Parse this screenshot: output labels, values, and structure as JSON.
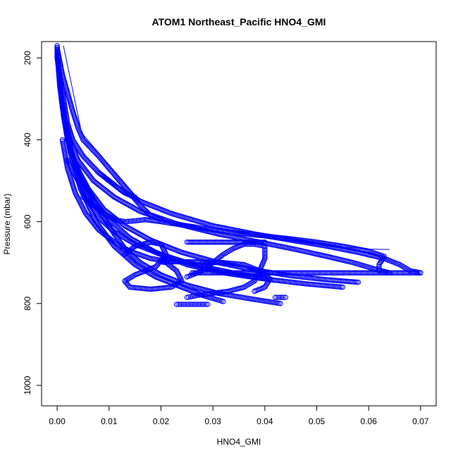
{
  "chart_data": {
    "type": "scatter",
    "title": "ATOM1 Northeast_Pacific HNO4_GMI",
    "xlabel": "HNO4_GMI",
    "ylabel": "Pressure (mbar)",
    "xlim": [
      -0.003,
      0.073
    ],
    "ylim": [
      1050,
      160
    ],
    "y_reversed": true,
    "x_ticks": [
      "0.00",
      "0.01",
      "0.02",
      "0.03",
      "0.04",
      "0.05",
      "0.06",
      "0.07"
    ],
    "x_tick_values": [
      0.0,
      0.01,
      0.02,
      0.03,
      0.04,
      0.05,
      0.06,
      0.07
    ],
    "y_ticks": [
      "200",
      "400",
      "600",
      "800",
      "1000"
    ],
    "y_tick_values": [
      200,
      400,
      600,
      800,
      1000
    ],
    "grid": false,
    "legend": "none",
    "color": "#0000ff",
    "marker": "open-circle",
    "series": [
      {
        "values": [
          [
            0.0,
            170
          ],
          [
            0.0,
            200
          ],
          [
            0.0005,
            240
          ],
          [
            0.001,
            280
          ],
          [
            0.0015,
            320
          ],
          [
            0.002,
            360
          ],
          [
            0.003,
            400
          ],
          [
            0.005,
            440
          ],
          [
            0.008,
            480
          ],
          [
            0.012,
            520
          ],
          [
            0.016,
            550
          ],
          [
            0.022,
            580
          ],
          [
            0.03,
            610
          ],
          [
            0.038,
            630
          ],
          [
            0.045,
            645
          ],
          [
            0.052,
            660
          ],
          [
            0.058,
            675
          ],
          [
            0.063,
            690
          ],
          [
            0.066,
            705
          ],
          [
            0.068,
            720
          ],
          [
            0.07,
            725
          ]
        ]
      },
      {
        "values": [
          [
            0.0,
            175
          ],
          [
            0.0003,
            230
          ],
          [
            0.0008,
            290
          ],
          [
            0.0015,
            350
          ],
          [
            0.0025,
            400
          ],
          [
            0.004,
            450
          ],
          [
            0.007,
            500
          ],
          [
            0.011,
            540
          ],
          [
            0.016,
            575
          ],
          [
            0.023,
            605
          ],
          [
            0.031,
            630
          ],
          [
            0.039,
            650
          ],
          [
            0.046,
            668
          ],
          [
            0.052,
            685
          ],
          [
            0.057,
            700
          ],
          [
            0.061,
            715
          ],
          [
            0.064,
            725
          ]
        ]
      },
      {
        "values": [
          [
            0.0,
            180
          ],
          [
            0.0005,
            260
          ],
          [
            0.0012,
            340
          ],
          [
            0.002,
            400
          ],
          [
            0.0035,
            460
          ],
          [
            0.006,
            520
          ],
          [
            0.009,
            570
          ],
          [
            0.013,
            610
          ],
          [
            0.018,
            645
          ],
          [
            0.024,
            675
          ],
          [
            0.031,
            700
          ],
          [
            0.038,
            718
          ],
          [
            0.045,
            732
          ],
          [
            0.052,
            742
          ],
          [
            0.058,
            748
          ]
        ]
      },
      {
        "values": [
          [
            0.0,
            185
          ],
          [
            0.0005,
            270
          ],
          [
            0.0015,
            360
          ],
          [
            0.003,
            440
          ],
          [
            0.005,
            500
          ],
          [
            0.007,
            545
          ],
          [
            0.009,
            590
          ],
          [
            0.011,
            630
          ],
          [
            0.013,
            665
          ],
          [
            0.016,
            700
          ],
          [
            0.02,
            730
          ],
          [
            0.025,
            755
          ],
          [
            0.031,
            775
          ],
          [
            0.038,
            790
          ],
          [
            0.043,
            800
          ]
        ]
      },
      {
        "values": [
          [
            0.0,
            190
          ],
          [
            0.0008,
            300
          ],
          [
            0.002,
            400
          ],
          [
            0.004,
            480
          ],
          [
            0.0065,
            540
          ],
          [
            0.01,
            595
          ],
          [
            0.014,
            640
          ],
          [
            0.019,
            675
          ],
          [
            0.025,
            705
          ],
          [
            0.032,
            725
          ],
          [
            0.04,
            740
          ],
          [
            0.048,
            752
          ],
          [
            0.055,
            760
          ]
        ]
      },
      {
        "values": [
          [
            0.0,
            195
          ],
          [
            0.001,
            320
          ],
          [
            0.0025,
            430
          ],
          [
            0.0045,
            520
          ],
          [
            0.0075,
            600
          ],
          [
            0.011,
            660
          ],
          [
            0.015,
            705
          ],
          [
            0.019,
            735
          ],
          [
            0.024,
            760
          ],
          [
            0.028,
            780
          ],
          [
            0.032,
            795
          ]
        ]
      },
      {
        "values": [
          [
            0.013,
            680
          ],
          [
            0.015,
            660
          ],
          [
            0.018,
            650
          ],
          [
            0.02,
            655
          ],
          [
            0.021,
            680
          ],
          [
            0.019,
            710
          ],
          [
            0.015,
            730
          ],
          [
            0.013,
            745
          ],
          [
            0.014,
            760
          ],
          [
            0.018,
            765
          ],
          [
            0.022,
            760
          ],
          [
            0.024,
            745
          ],
          [
            0.023,
            720
          ],
          [
            0.021,
            700
          ],
          [
            0.02,
            698
          ],
          [
            0.024,
            698
          ],
          [
            0.028,
            698
          ],
          [
            0.03,
            700
          ]
        ]
      },
      {
        "values": [
          [
            0.025,
            735
          ],
          [
            0.028,
            720
          ],
          [
            0.03,
            700
          ],
          [
            0.032,
            680
          ],
          [
            0.034,
            665
          ],
          [
            0.036,
            655
          ],
          [
            0.038,
            655
          ],
          [
            0.04,
            660
          ],
          [
            0.04,
            690
          ],
          [
            0.039,
            720
          ],
          [
            0.038,
            745
          ],
          [
            0.036,
            760
          ],
          [
            0.033,
            770
          ],
          [
            0.03,
            775
          ],
          [
            0.027,
            780
          ],
          [
            0.025,
            785
          ]
        ]
      },
      {
        "values": [
          [
            0.026,
            725
          ],
          [
            0.03,
            725
          ],
          [
            0.034,
            725
          ],
          [
            0.038,
            725
          ],
          [
            0.042,
            725
          ],
          [
            0.046,
            725
          ],
          [
            0.05,
            725
          ],
          [
            0.054,
            725
          ],
          [
            0.058,
            725
          ],
          [
            0.062,
            725
          ],
          [
            0.066,
            725
          ],
          [
            0.07,
            725
          ]
        ]
      },
      {
        "values": [
          [
            0.025,
            650
          ],
          [
            0.028,
            650
          ],
          [
            0.031,
            650
          ],
          [
            0.034,
            650
          ],
          [
            0.037,
            650
          ],
          [
            0.04,
            650
          ]
        ]
      },
      {
        "values": [
          [
            0.028,
            700
          ],
          [
            0.032,
            700
          ],
          [
            0.036,
            705
          ],
          [
            0.039,
            720
          ],
          [
            0.041,
            740
          ],
          [
            0.04,
            760
          ],
          [
            0.038,
            770
          ]
        ]
      },
      {
        "values": [
          [
            0.023,
            802
          ],
          [
            0.024,
            802
          ],
          [
            0.025,
            802
          ],
          [
            0.026,
            802
          ],
          [
            0.027,
            802
          ],
          [
            0.028,
            802
          ],
          [
            0.029,
            802
          ]
        ]
      },
      {
        "values": [
          [
            0.042,
            785
          ],
          [
            0.043,
            785
          ],
          [
            0.044,
            785
          ]
        ]
      },
      {
        "values": [
          [
            0.0,
            175
          ],
          [
            0.001,
            240
          ],
          [
            0.003,
            330
          ],
          [
            0.004,
            370
          ],
          [
            0.0045,
            385
          ],
          [
            0.005,
            400
          ],
          [
            0.008,
            440
          ],
          [
            0.01,
            470
          ],
          [
            0.012,
            500
          ],
          [
            0.014,
            530
          ],
          [
            0.016,
            560
          ],
          [
            0.018,
            585
          ],
          [
            0.02,
            595
          ]
        ]
      },
      {
        "values": [
          [
            0.005,
            540
          ],
          [
            0.007,
            560
          ],
          [
            0.009,
            580
          ],
          [
            0.011,
            595
          ],
          [
            0.013,
            600
          ],
          [
            0.015,
            598
          ],
          [
            0.017,
            595
          ],
          [
            0.02,
            600
          ],
          [
            0.025,
            610
          ],
          [
            0.03,
            620
          ],
          [
            0.035,
            628
          ],
          [
            0.04,
            635
          ],
          [
            0.045,
            642
          ],
          [
            0.05,
            650
          ],
          [
            0.055,
            660
          ],
          [
            0.06,
            672
          ],
          [
            0.063,
            685
          ],
          [
            0.062,
            705
          ],
          [
            0.062,
            720
          ]
        ]
      },
      {
        "values": [
          [
            0.008,
            480
          ],
          [
            0.01,
            500
          ],
          [
            0.012,
            520
          ],
          [
            0.013,
            530
          ],
          [
            0.014,
            535
          ],
          [
            0.015,
            540
          ]
        ]
      },
      {
        "values": [
          [
            0.002,
            450
          ],
          [
            0.004,
            500
          ],
          [
            0.006,
            550
          ],
          [
            0.008,
            590
          ],
          [
            0.011,
            625
          ],
          [
            0.015,
            655
          ],
          [
            0.02,
            680
          ],
          [
            0.025,
            700
          ],
          [
            0.03,
            715
          ],
          [
            0.035,
            728
          ],
          [
            0.04,
            738
          ]
        ]
      },
      {
        "values": [
          [
            0.001,
            400
          ],
          [
            0.002,
            470
          ],
          [
            0.0035,
            530
          ],
          [
            0.0055,
            580
          ],
          [
            0.008,
            620
          ],
          [
            0.011,
            650
          ],
          [
            0.014,
            672
          ],
          [
            0.018,
            690
          ],
          [
            0.022,
            698
          ]
        ]
      }
    ],
    "lines": [
      [
        [
          0.0012,
          170
        ],
        [
          0.0045,
          370
        ]
      ],
      [
        [
          0.0045,
          380
        ],
        [
          0.015,
          535
        ]
      ],
      [
        [
          0.052,
          660
        ],
        [
          0.056,
          663
        ],
        [
          0.06,
          667
        ],
        [
          0.064,
          668
        ]
      ]
    ]
  }
}
